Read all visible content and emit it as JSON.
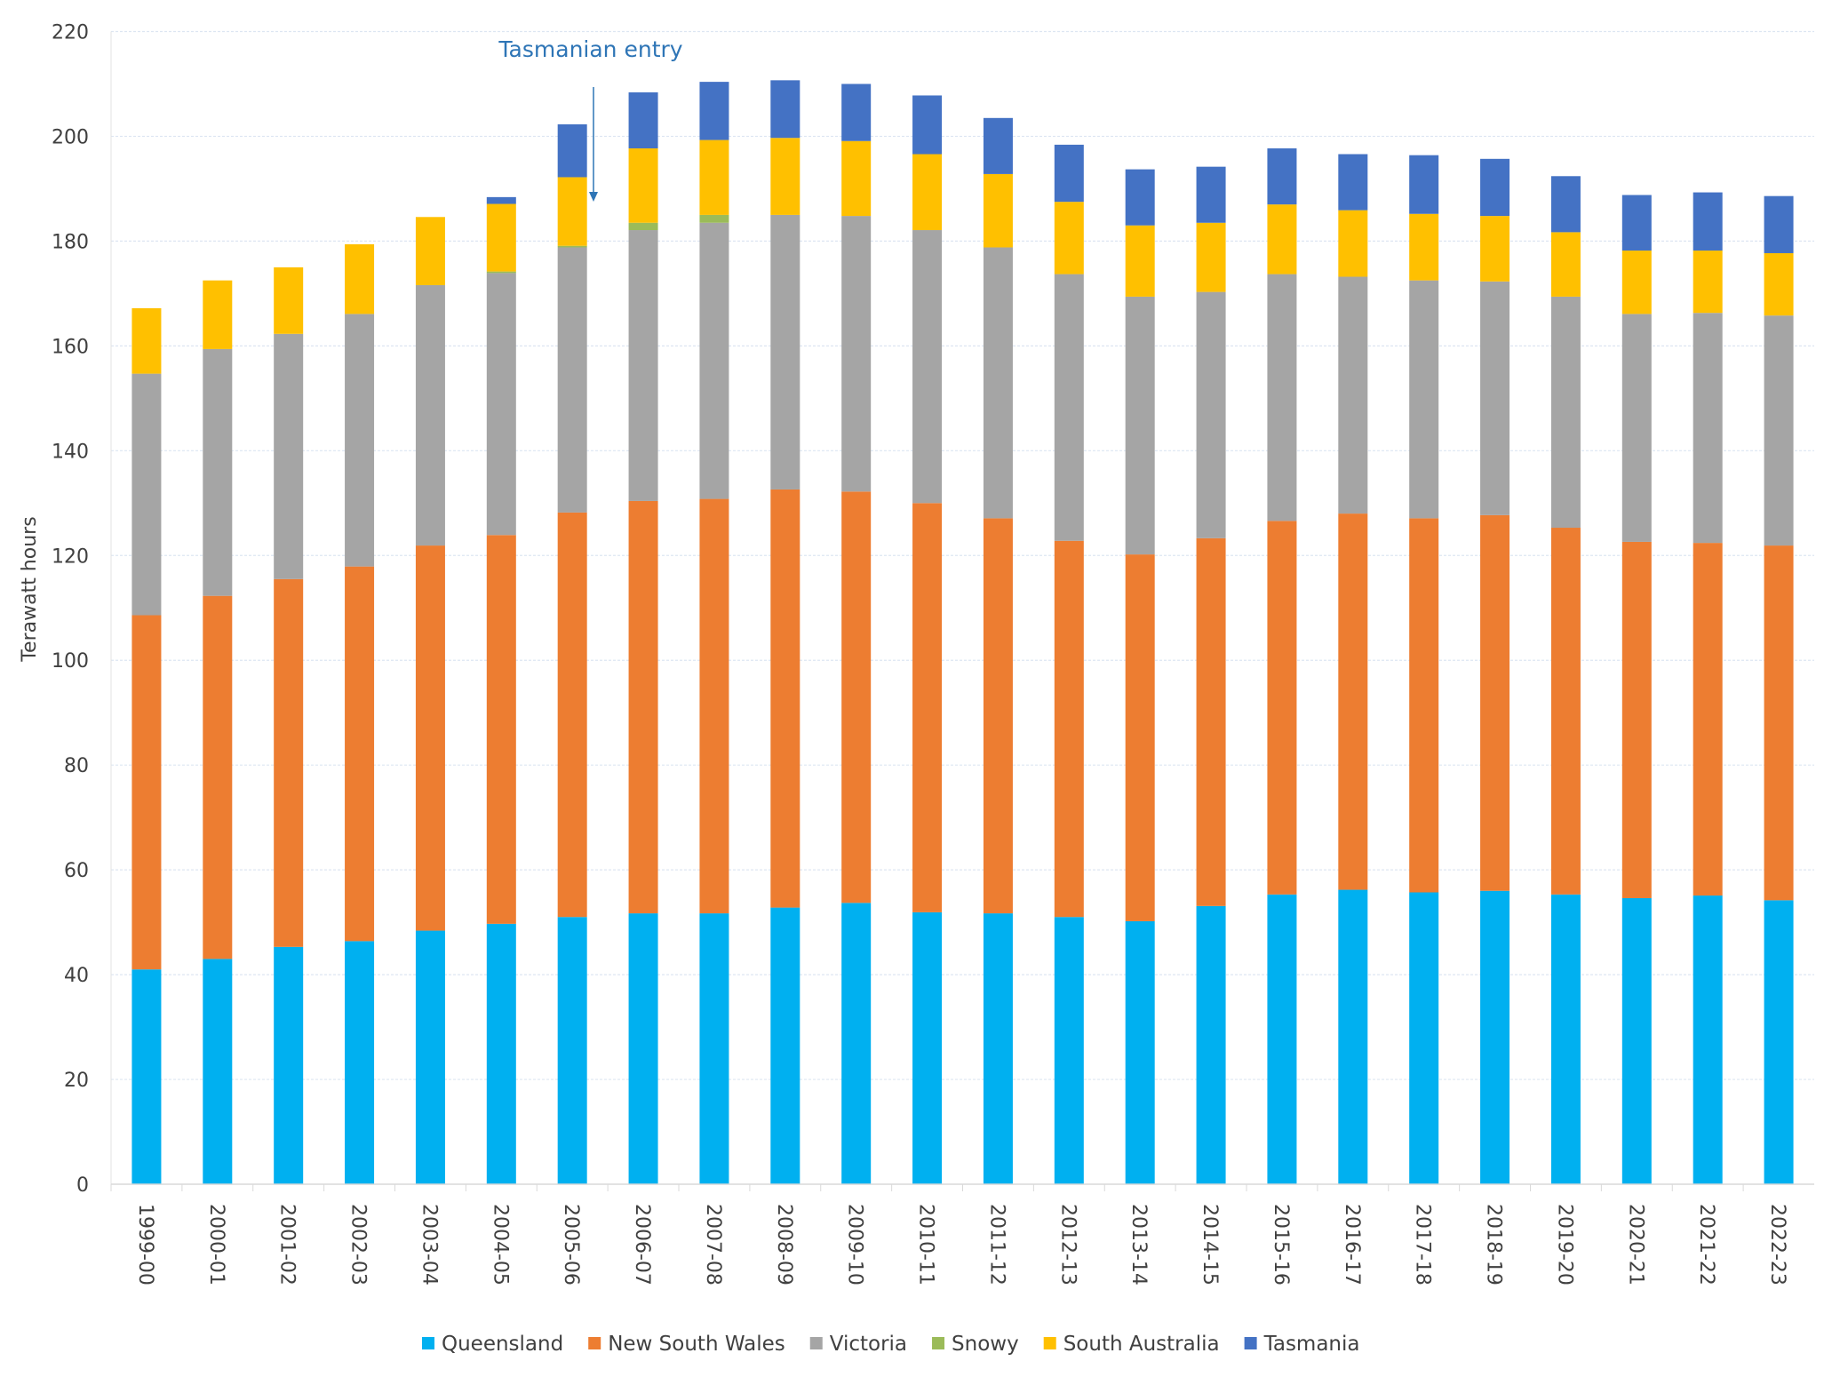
{
  "chart_data": {
    "type": "bar",
    "stacked": true,
    "title": "",
    "xlabel": "",
    "ylabel": "Terawatt hours",
    "ylim": [
      0,
      220
    ],
    "yticks": [
      0,
      20,
      40,
      60,
      80,
      100,
      120,
      140,
      160,
      180,
      200,
      220
    ],
    "grid": true,
    "legend_position": "bottom",
    "annotation": {
      "text": "Tasmanian entry",
      "points_to": "2005-06",
      "color": "#2E75B6"
    },
    "categories": [
      "1999-00",
      "2000-01",
      "2001-02",
      "2002-03",
      "2003-04",
      "2004-05",
      "2005-06",
      "2006-07",
      "2007-08",
      "2008-09",
      "2009-10",
      "2010-11",
      "2011-12",
      "2012-13",
      "2013-14",
      "2014-15",
      "2015-16",
      "2016-17",
      "2017-18",
      "2018-19",
      "2019-20",
      "2020-21",
      "2021-22",
      "2022-23"
    ],
    "series": [
      {
        "name": "Queensland",
        "color": "#00B0F0",
        "values": [
          41.0,
          43.0,
          45.3,
          46.4,
          48.4,
          49.7,
          51.0,
          51.7,
          51.7,
          52.8,
          53.7,
          51.9,
          51.7,
          51.0,
          50.2,
          53.1,
          55.3,
          56.2,
          55.7,
          56.0,
          55.3,
          54.6,
          55.1,
          54.2
        ]
      },
      {
        "name": "New South Wales",
        "color": "#ED7D31",
        "values": [
          67.6,
          69.3,
          70.2,
          71.5,
          73.5,
          74.2,
          77.2,
          78.7,
          79.1,
          79.8,
          78.5,
          78.1,
          75.4,
          71.8,
          70.0,
          70.2,
          71.3,
          71.8,
          71.4,
          71.7,
          70.0,
          68.0,
          67.3,
          67.7
        ]
      },
      {
        "name": "Victoria",
        "color": "#A5A5A5",
        "values": [
          46.1,
          47.1,
          46.8,
          48.2,
          49.7,
          50.0,
          50.6,
          51.7,
          52.7,
          52.4,
          52.6,
          52.1,
          51.7,
          50.9,
          49.2,
          47.0,
          47.1,
          45.2,
          45.4,
          44.6,
          44.1,
          43.5,
          43.9,
          43.9
        ]
      },
      {
        "name": "Snowy",
        "color": "#9BBB59",
        "values": [
          0,
          0,
          0,
          0,
          0,
          0.3,
          0.3,
          1.4,
          1.5,
          0,
          0,
          0,
          0,
          0,
          0,
          0,
          0,
          0,
          0,
          0,
          0,
          0,
          0,
          0
        ]
      },
      {
        "name": "South Australia",
        "color": "#FFC000",
        "values": [
          12.5,
          13.1,
          12.7,
          13.3,
          13.0,
          12.9,
          13.1,
          14.2,
          14.3,
          14.7,
          14.3,
          14.5,
          14.0,
          13.8,
          13.6,
          13.2,
          13.3,
          12.7,
          12.7,
          12.5,
          12.3,
          12.1,
          11.9,
          11.9
        ]
      },
      {
        "name": "Tasmania",
        "color": "#4472C4",
        "values": [
          0,
          0,
          0,
          0,
          0,
          1.3,
          10.1,
          10.7,
          11.1,
          11.0,
          10.9,
          11.2,
          10.7,
          10.9,
          10.7,
          10.7,
          10.7,
          10.7,
          11.2,
          10.9,
          10.7,
          10.6,
          11.1,
          10.9
        ]
      }
    ]
  }
}
